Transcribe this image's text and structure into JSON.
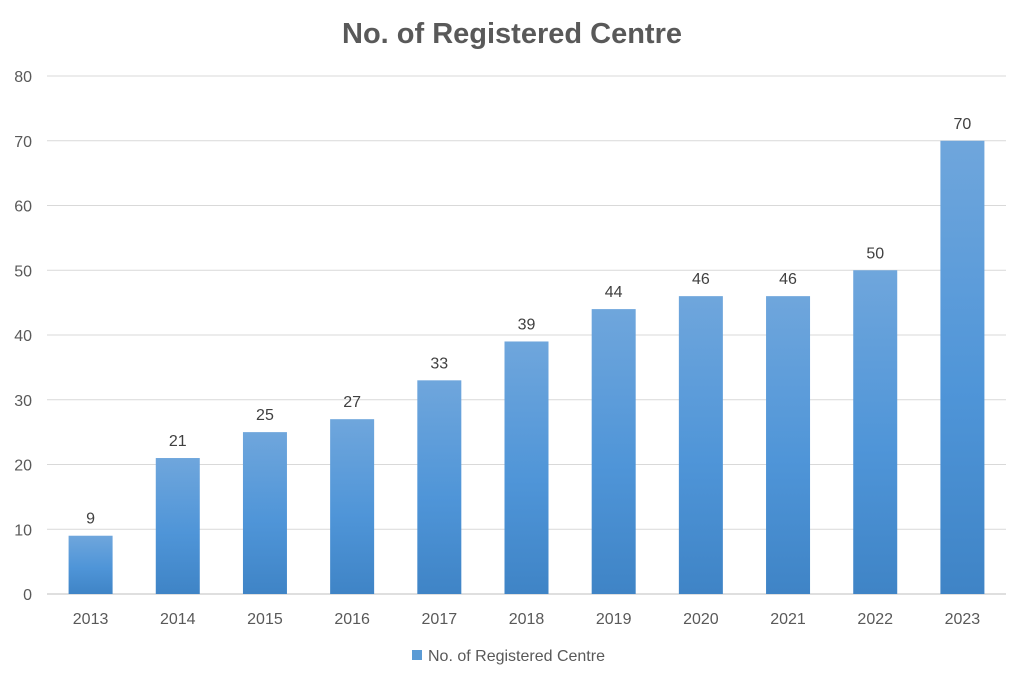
{
  "chart_data": {
    "type": "bar",
    "title": "No. of Registered Centre",
    "xlabel": "",
    "ylabel": "",
    "categories": [
      "2013",
      "2014",
      "2015",
      "2016",
      "2017",
      "2018",
      "2019",
      "2020",
      "2021",
      "2022",
      "2023"
    ],
    "series": [
      {
        "name": "No. of Registered Centre",
        "values": [
          9,
          21,
          25,
          27,
          33,
          39,
          44,
          46,
          46,
          50,
          70
        ],
        "color": "#5b9bd5"
      }
    ],
    "ylim": [
      0,
      80
    ],
    "yticks": [
      0,
      10,
      20,
      30,
      40,
      50,
      60,
      70,
      80
    ],
    "grid": true,
    "data_labels": true,
    "legend_position": "bottom"
  }
}
